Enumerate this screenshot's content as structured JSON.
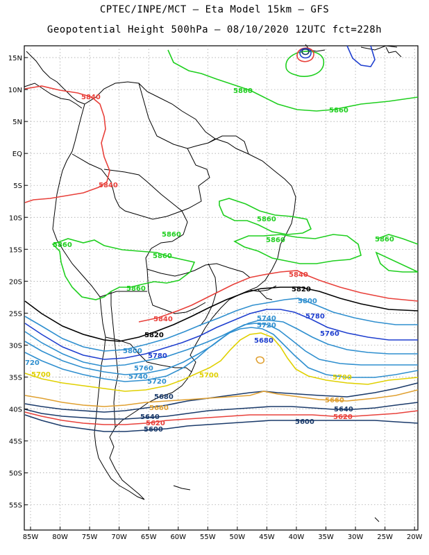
{
  "header": {
    "line1": "CPTEC/INPE/MCT –  Eta Model 15km – GFS",
    "line2": "Geopotential Height 500hPa – 08/10/2020 12UTC fct=228h"
  },
  "map": {
    "lat_ticks": [
      "15N",
      "10N",
      "5N",
      "EQ",
      "5S",
      "10S",
      "15S",
      "20S",
      "25S",
      "30S",
      "35S",
      "40S",
      "45S",
      "50S",
      "55S"
    ],
    "lon_ticks": [
      "85W",
      "80W",
      "75W",
      "70W",
      "65W",
      "60W",
      "55W",
      "50W",
      "45W",
      "40W",
      "35W",
      "30W",
      "25W",
      "20W"
    ],
    "grid": true,
    "contour_labels": [
      {
        "id": "c1",
        "text": "5840",
        "color": "#e8403a"
      },
      {
        "id": "c2",
        "text": "5860",
        "color": "#1fcf1f"
      },
      {
        "id": "c3",
        "text": "5860",
        "color": "#1fcf1f"
      },
      {
        "id": "c4",
        "text": "5840",
        "color": "#e8403a"
      },
      {
        "id": "c5",
        "text": "5860",
        "color": "#1fcf1f"
      },
      {
        "id": "c6",
        "text": "5860",
        "color": "#1fcf1f"
      },
      {
        "id": "c7",
        "text": "5860",
        "color": "#1fcf1f"
      },
      {
        "id": "c8",
        "text": "5860",
        "color": "#1fcf1f"
      },
      {
        "id": "c9",
        "text": "5860",
        "color": "#1fcf1f"
      },
      {
        "id": "c10",
        "text": "5860",
        "color": "#1fcf1f"
      },
      {
        "id": "c11",
        "text": "5860",
        "color": "#1fcf1f"
      },
      {
        "id": "c12",
        "text": "5840",
        "color": "#e8403a"
      },
      {
        "id": "c13",
        "text": "5820",
        "color": "#000000"
      },
      {
        "id": "c14",
        "text": "5800",
        "color": "#2f8fcf"
      },
      {
        "id": "c15",
        "text": "5780",
        "color": "#1f3fcf"
      },
      {
        "id": "c16",
        "text": "5840",
        "color": "#e8403a"
      },
      {
        "id": "c17",
        "text": "5820",
        "color": "#000000"
      },
      {
        "id": "c18",
        "text": "5740",
        "color": "#2f8fcf"
      },
      {
        "id": "c19",
        "text": "5720",
        "color": "#2f8fcf"
      },
      {
        "id": "c20",
        "text": "5760",
        "color": "#1f3fcf"
      },
      {
        "id": "c21",
        "text": "5680",
        "color": "#1f3fcf"
      },
      {
        "id": "c22",
        "text": "5800",
        "color": "#2f8fcf"
      },
      {
        "id": "c23",
        "text": "5780",
        "color": "#1f3fcf"
      },
      {
        "id": "c24",
        "text": "5760",
        "color": "#2f8fcf"
      },
      {
        "id": "c25",
        "text": "5740",
        "color": "#2f8fcf"
      },
      {
        "id": "c26",
        "text": "5720",
        "color": "#2f8fcf"
      },
      {
        "id": "c27",
        "text": "720",
        "color": "#2f8fcf"
      },
      {
        "id": "c28",
        "text": "5700",
        "color": "#e0d000"
      },
      {
        "id": "c29",
        "text": "5700",
        "color": "#e0d000"
      },
      {
        "id": "c30",
        "text": "5700",
        "color": "#e0d000"
      },
      {
        "id": "c31",
        "text": "5680",
        "color": "#1a3a6a"
      },
      {
        "id": "c32",
        "text": "5660",
        "color": "#e0a030"
      },
      {
        "id": "c33",
        "text": "5640",
        "color": "#1a3a6a"
      },
      {
        "id": "c34",
        "text": "5620",
        "color": "#e8403a"
      },
      {
        "id": "c35",
        "text": "5600",
        "color": "#1a3a6a"
      },
      {
        "id": "c36",
        "text": "5660",
        "color": "#e0a030"
      },
      {
        "id": "c37",
        "text": "5640",
        "color": "#1a3a6a"
      },
      {
        "id": "c38",
        "text": "5620",
        "color": "#e8403a"
      },
      {
        "id": "c39",
        "text": "5600",
        "color": "#1a3a6a"
      }
    ]
  }
}
